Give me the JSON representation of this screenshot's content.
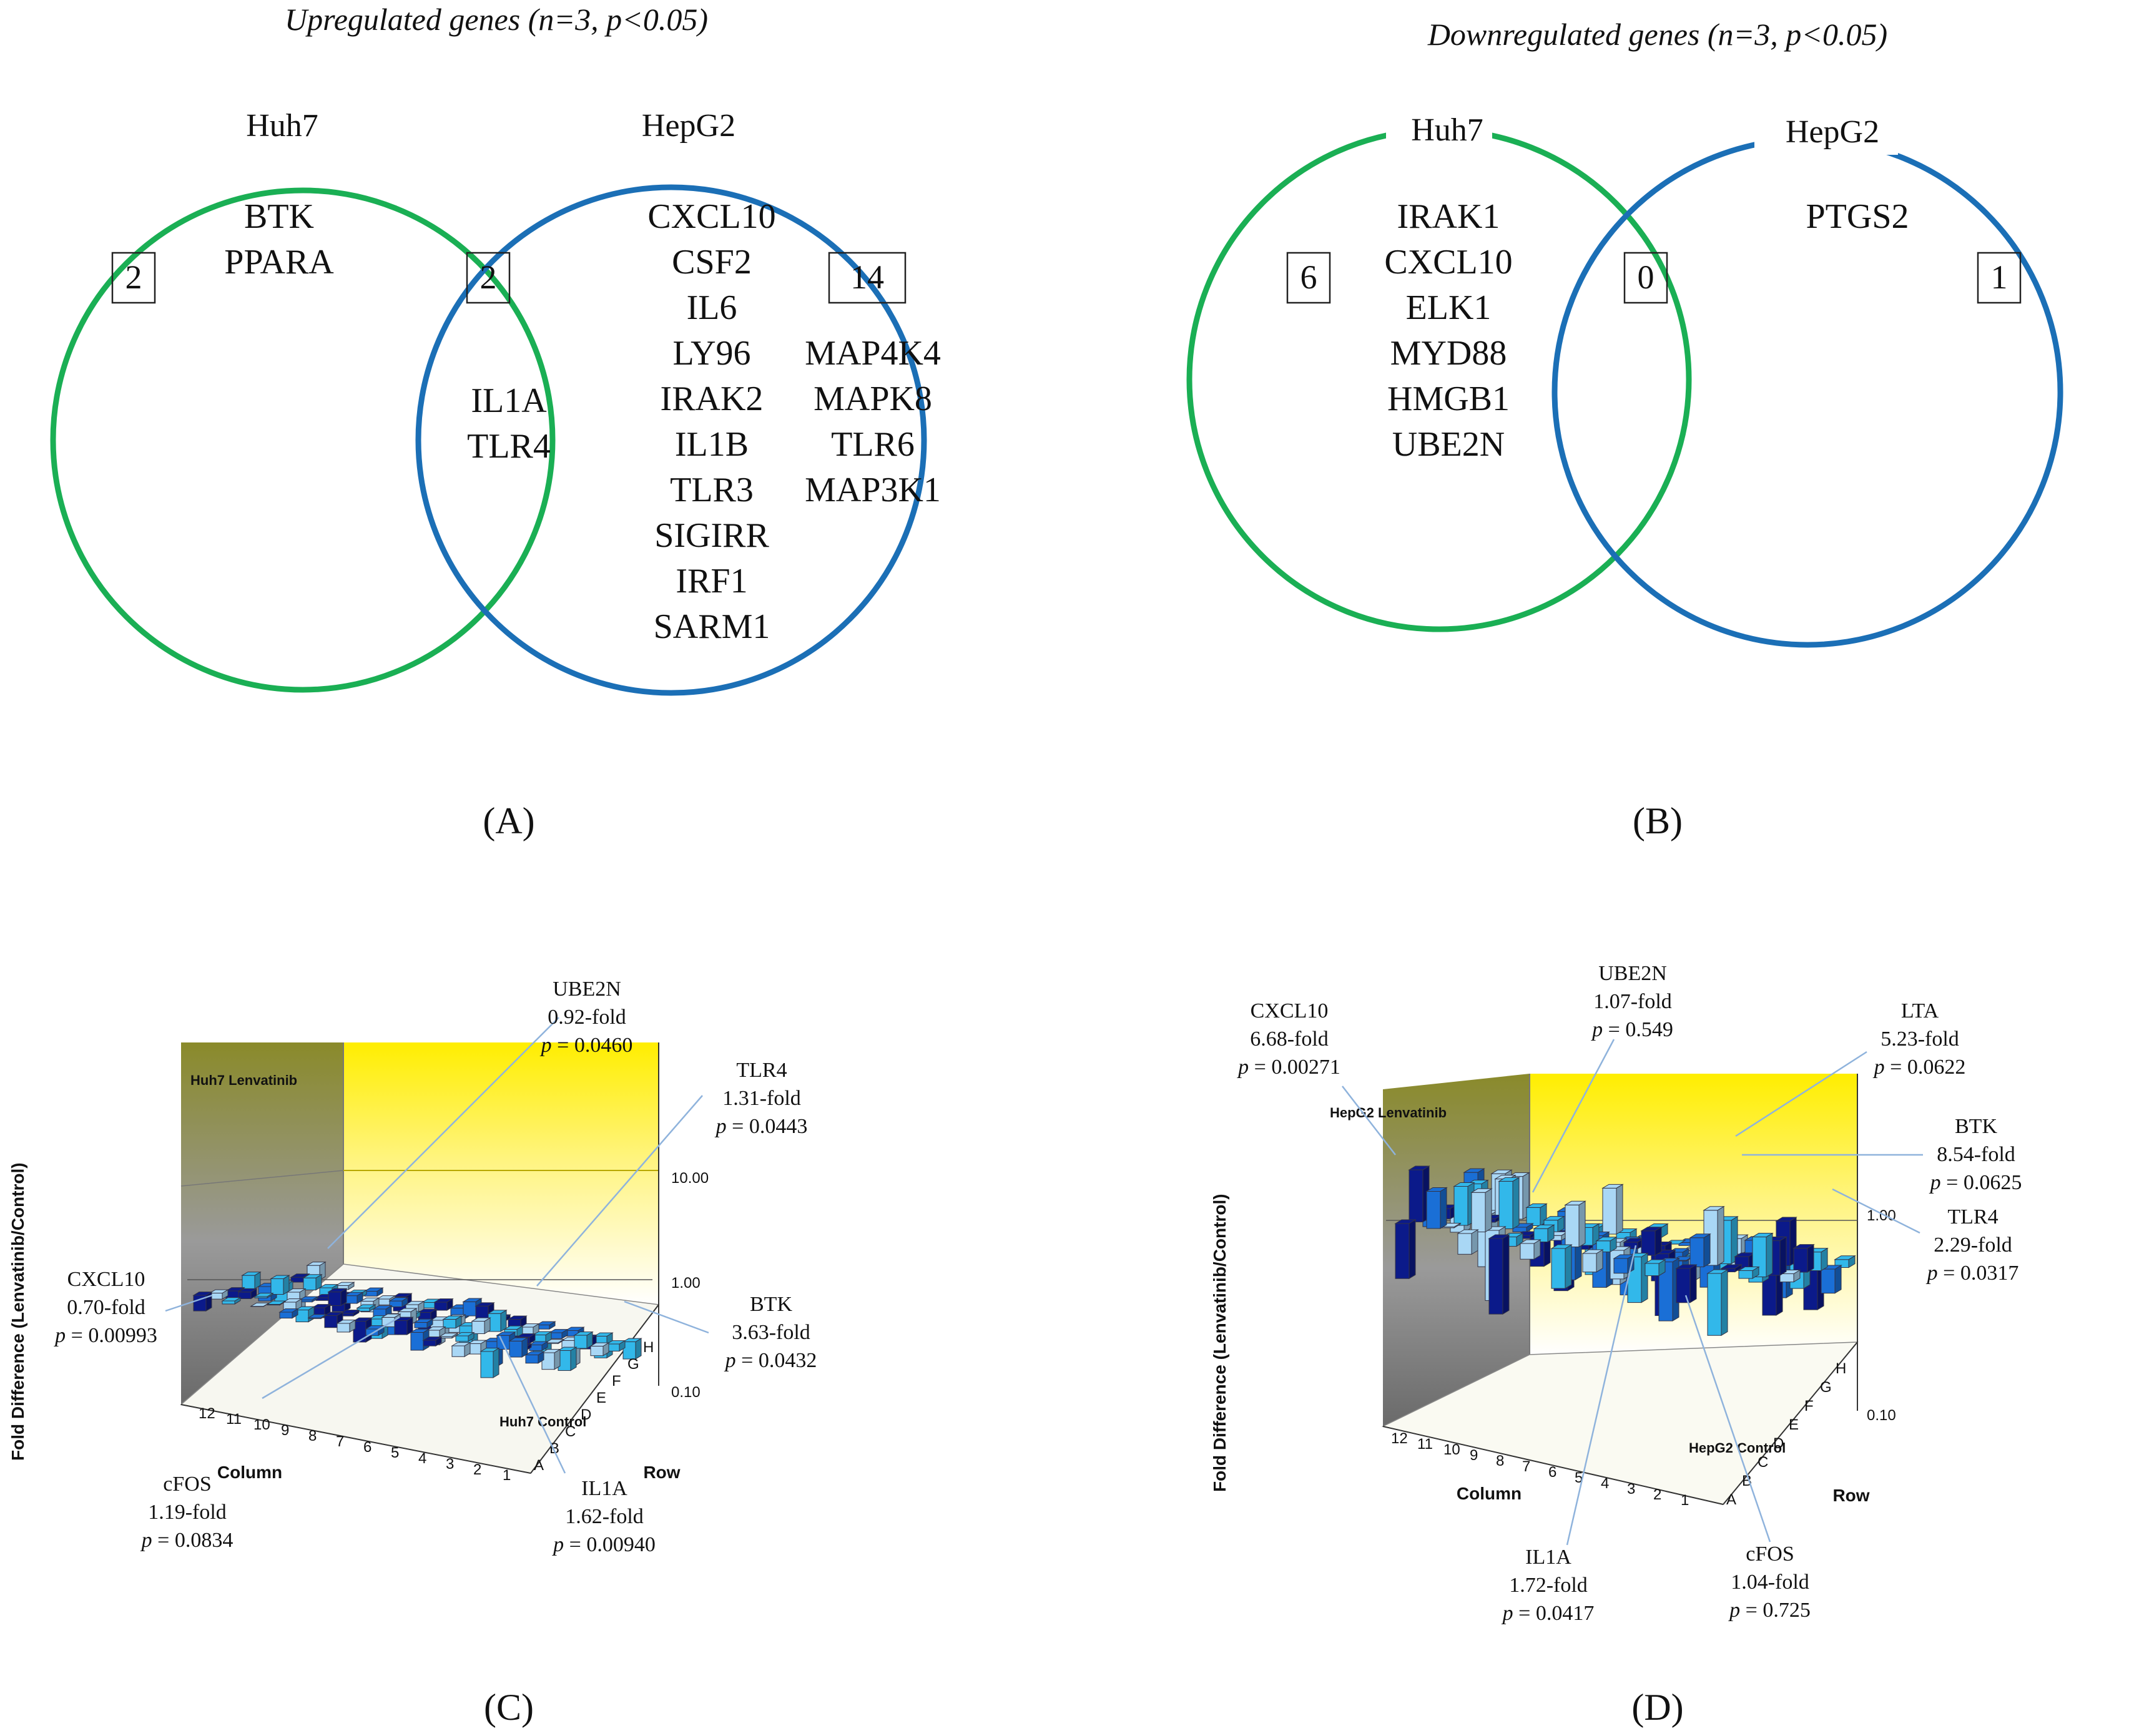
{
  "colors": {
    "huh7": "#1aaf54",
    "hepg2": "#1b6fb6",
    "wall_yellow": "#ffee00",
    "wall_gray": "#6e6e6e",
    "bar_light": "#a9d7f5",
    "bar_sky": "#32b8ea",
    "bar_mid": "#1a6fd6",
    "bar_dark": "#0b1a8a"
  },
  "venn_A": {
    "title": "Upregulated genes (n=3, p<0.05)",
    "left_label": "Huh7",
    "right_label": "HepG2",
    "left_count": "2",
    "overlap_count": "2",
    "right_count": "14",
    "left_genes": [
      "BTK",
      "PPARA"
    ],
    "overlap_genes": [
      "IL1A",
      "TLR4"
    ],
    "right_genes_col1": [
      "CXCL10",
      "CSF2",
      "IL6",
      "LY96",
      "IRAK2",
      "IL1B",
      "TLR3",
      "SIGIRR",
      "IRF1",
      "SARM1"
    ],
    "right_genes_col2": [
      "MAP4K4",
      "MAPK8",
      "TLR6",
      "MAP3K1"
    ],
    "panel_label": "(A)"
  },
  "venn_B": {
    "title": "Downregulated genes (n=3, p<0.05)",
    "left_label": "Huh7",
    "right_label": "HepG2",
    "left_count": "6",
    "overlap_count": "0",
    "right_count": "1",
    "left_genes": [
      "IRAK1",
      "CXCL10",
      "ELK1",
      "MYD88",
      "HMGB1",
      "UBE2N"
    ],
    "overlap_genes": [],
    "right_genes": [
      "PTGS2"
    ],
    "panel_label": "(B)"
  },
  "plot_C": {
    "panel_label": "(C)",
    "plate_label": "Huh7 Lenvatinib",
    "control_label": "Huh7 Control",
    "ylabel": "Fold Difference (Lenvatinib/Control)",
    "xlabel": "Column",
    "rowlabel": "Row",
    "yticks": [
      "10.00",
      "1.00",
      "0.10"
    ],
    "columns": [
      "12",
      "11",
      "10",
      "9",
      "8",
      "7",
      "6",
      "5",
      "4",
      "3",
      "2",
      "1"
    ],
    "rows": [
      "A",
      "B",
      "C",
      "D",
      "E",
      "F",
      "G",
      "H"
    ],
    "annotations": [
      {
        "gene": "UBE2N",
        "fold": "0.92-fold",
        "p_label": "p",
        "p_value": " = 0.0460"
      },
      {
        "gene": "TLR4",
        "fold": "1.31-fold",
        "p_label": "p",
        "p_value": " = 0.0443"
      },
      {
        "gene": "CXCL10",
        "fold": "0.70-fold",
        "p_label": "p",
        "p_value": " = 0.00993"
      },
      {
        "gene": "BTK",
        "fold": "3.63-fold",
        "p_label": "p",
        "p_value": " = 0.0432"
      },
      {
        "gene": "cFOS",
        "fold": "1.19-fold",
        "p_label": "p",
        "p_value": " = 0.0834"
      },
      {
        "gene": "IL1A",
        "fold": "1.62-fold",
        "p_label": "p",
        "p_value": " = 0.00940"
      }
    ]
  },
  "plot_D": {
    "panel_label": "(D)",
    "plate_label": "HepG2 Lenvatinib",
    "control_label": "HepG2 Control",
    "ylabel": "Fold Difference (Lenvatinib/Control)",
    "xlabel": "Column",
    "rowlabel": "Row",
    "yticks": [
      "1.00",
      "0.10"
    ],
    "columns": [
      "12",
      "11",
      "10",
      "9",
      "8",
      "7",
      "6",
      "5",
      "4",
      "3",
      "2",
      "1"
    ],
    "rows": [
      "A",
      "B",
      "C",
      "D",
      "E",
      "F",
      "G",
      "H"
    ],
    "annotations": [
      {
        "gene": "CXCL10",
        "fold": "6.68-fold",
        "p_label": "p",
        "p_value": " = 0.00271"
      },
      {
        "gene": "UBE2N",
        "fold": "1.07-fold",
        "p_label": "p",
        "p_value": " = 0.549"
      },
      {
        "gene": "LTA",
        "fold": "5.23-fold",
        "p_label": "p",
        "p_value": " = 0.0622"
      },
      {
        "gene": "BTK",
        "fold": "8.54-fold",
        "p_label": "p",
        "p_value": " = 0.0625"
      },
      {
        "gene": "TLR4",
        "fold": "2.29-fold",
        "p_label": "p",
        "p_value": " = 0.0317"
      },
      {
        "gene": "IL1A",
        "fold": "1.72-fold",
        "p_label": "p",
        "p_value": " = 0.0417"
      },
      {
        "gene": "cFOS",
        "fold": "1.04-fold",
        "p_label": "p",
        "p_value": " = 0.725"
      }
    ]
  }
}
